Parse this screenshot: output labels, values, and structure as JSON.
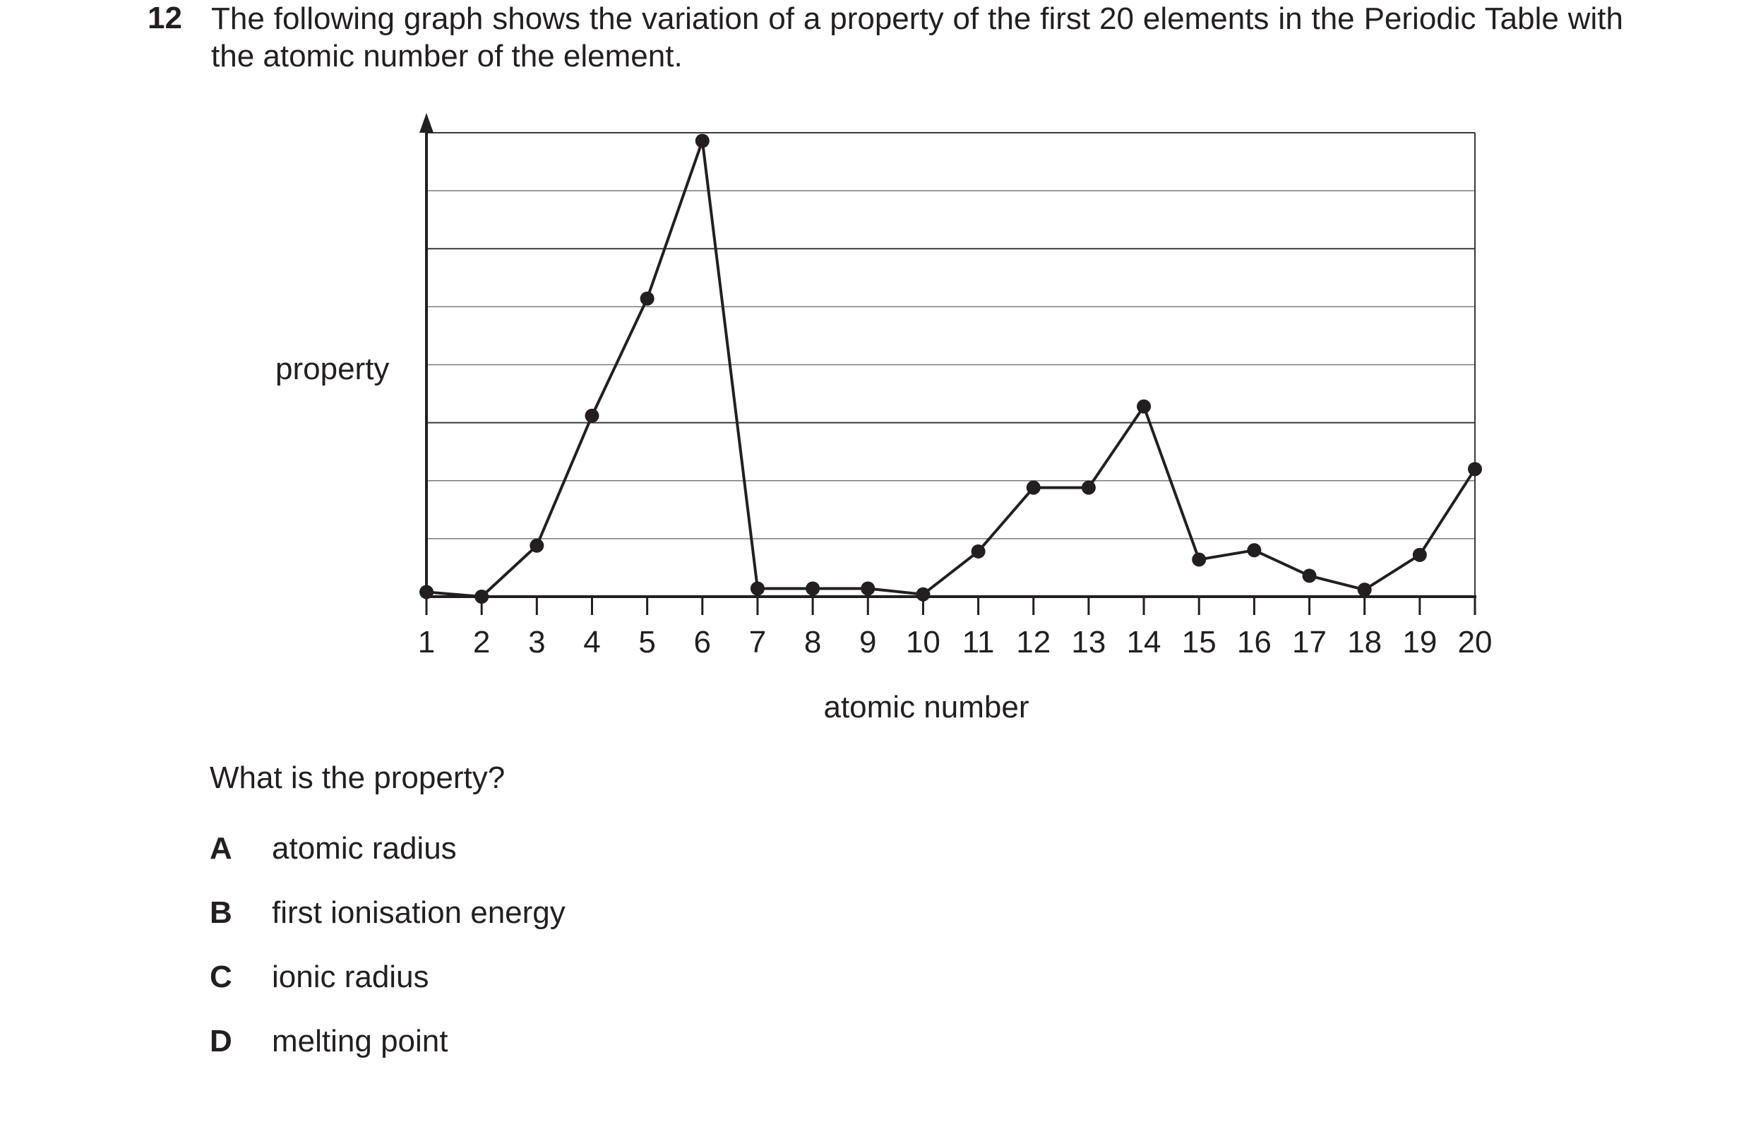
{
  "question": {
    "number": "12",
    "text": "The following graph shows the variation of a property of the first 20 elements in the Periodic Table with the atomic number of the element.",
    "prompt": "What is the property?",
    "options": [
      {
        "letter": "A",
        "text": "atomic radius"
      },
      {
        "letter": "B",
        "text": "first ionisation energy"
      },
      {
        "letter": "C",
        "text": "ionic radius"
      },
      {
        "letter": "D",
        "text": "melting point"
      }
    ]
  },
  "chart_data": {
    "type": "line",
    "title": "",
    "xlabel": "atomic number",
    "ylabel": "property",
    "x": [
      1,
      2,
      3,
      4,
      5,
      6,
      7,
      8,
      9,
      10,
      11,
      12,
      13,
      14,
      15,
      16,
      17,
      18,
      19,
      20
    ],
    "y": [
      0.08,
      0.0,
      0.88,
      3.12,
      5.14,
      7.86,
      0.14,
      0.14,
      0.14,
      0.04,
      0.78,
      1.88,
      1.88,
      3.28,
      0.64,
      0.8,
      0.36,
      0.12,
      0.72,
      2.2
    ],
    "xticks": [
      "1",
      "2",
      "3",
      "4",
      "5",
      "6",
      "7",
      "8",
      "9",
      "10",
      "11",
      "12",
      "13",
      "14",
      "15",
      "16",
      "17",
      "18",
      "19",
      "20"
    ],
    "ylim": [
      0,
      8
    ],
    "y_tick_labels": false,
    "grid": "horizontal",
    "legend": "none",
    "markers": "filled-circle",
    "line_color": "#231f20"
  }
}
